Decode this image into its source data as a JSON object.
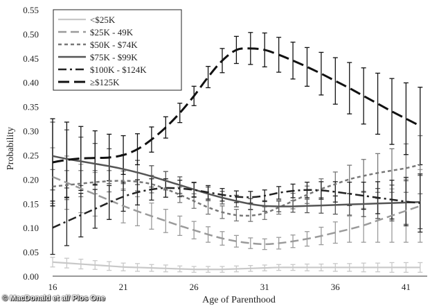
{
  "credit": "© MacDonald et al/ Plos One",
  "chart_data": {
    "type": "line",
    "title": "",
    "xlabel": "Age of Parenthood",
    "ylabel": "Probability",
    "xlim": [
      16,
      42.5
    ],
    "ylim": [
      0,
      0.55
    ],
    "x_ticks": [
      16,
      21,
      26,
      31,
      36,
      41
    ],
    "y_ticks": [
      0.0,
      0.05,
      0.1,
      0.15,
      0.2,
      0.25,
      0.3,
      0.35,
      0.4,
      0.45,
      0.5,
      0.55
    ],
    "legend_position": "top-left",
    "grid": false,
    "x": [
      16,
      17,
      18,
      19,
      20,
      21,
      22,
      23,
      24,
      25,
      26,
      27,
      28,
      29,
      30,
      31,
      32,
      33,
      34,
      35,
      36,
      37,
      38,
      39,
      40,
      41,
      42
    ],
    "series": [
      {
        "name": "<$25K",
        "color": "#c8c8c8",
        "dash": "solid",
        "width": 2.2,
        "values": [
          0.029,
          0.027,
          0.025,
          0.023,
          0.021,
          0.019,
          0.018,
          0.017,
          0.016,
          0.015,
          0.014,
          0.014,
          0.014,
          0.015,
          0.016,
          0.017,
          0.018,
          0.018,
          0.018,
          0.018,
          0.018,
          0.018,
          0.018,
          0.018,
          0.018,
          0.018,
          0.018
        ],
        "error": [
          0.01,
          0.01,
          0.01,
          0.009,
          0.009,
          0.008,
          0.008,
          0.007,
          0.007,
          0.006,
          0.006,
          0.006,
          0.006,
          0.006,
          0.006,
          0.006,
          0.006,
          0.006,
          0.007,
          0.007,
          0.008,
          0.008,
          0.009,
          0.009,
          0.01,
          0.01,
          0.01
        ]
      },
      {
        "name": "$25K - 49K",
        "color": "#9a9a9a",
        "dash": "longdash",
        "width": 2.5,
        "values": [
          0.205,
          0.193,
          0.181,
          0.169,
          0.157,
          0.145,
          0.134,
          0.124,
          0.114,
          0.104,
          0.095,
          0.086,
          0.078,
          0.072,
          0.068,
          0.066,
          0.068,
          0.072,
          0.077,
          0.083,
          0.09,
          0.097,
          0.105,
          0.115,
          0.125,
          0.135,
          0.145
        ],
        "error": [
          0.06,
          0.055,
          0.05,
          0.045,
          0.04,
          0.035,
          0.03,
          0.027,
          0.024,
          0.02,
          0.018,
          0.016,
          0.014,
          0.012,
          0.011,
          0.011,
          0.012,
          0.013,
          0.015,
          0.018,
          0.022,
          0.027,
          0.035,
          0.045,
          0.055,
          0.065,
          0.075
        ]
      },
      {
        "name": "$50K - $74K",
        "color": "#777777",
        "dash": "shortdash",
        "width": 2.5,
        "values": [
          0.185,
          0.188,
          0.191,
          0.194,
          0.196,
          0.197,
          0.195,
          0.19,
          0.18,
          0.168,
          0.155,
          0.142,
          0.132,
          0.126,
          0.125,
          0.13,
          0.142,
          0.155,
          0.168,
          0.18,
          0.19,
          0.2,
          0.207,
          0.213,
          0.218,
          0.223,
          0.23
        ],
        "error": [
          0.035,
          0.03,
          0.027,
          0.024,
          0.022,
          0.02,
          0.019,
          0.018,
          0.017,
          0.016,
          0.015,
          0.014,
          0.013,
          0.012,
          0.012,
          0.013,
          0.014,
          0.016,
          0.018,
          0.021,
          0.025,
          0.029,
          0.034,
          0.04,
          0.045,
          0.05,
          0.06
        ]
      },
      {
        "name": "$75K - $99K",
        "color": "#555555",
        "dash": "solid",
        "width": 2.5,
        "values": [
          0.248,
          0.242,
          0.237,
          0.232,
          0.227,
          0.221,
          0.214,
          0.206,
          0.197,
          0.188,
          0.179,
          0.17,
          0.162,
          0.155,
          0.149,
          0.145,
          0.144,
          0.144,
          0.145,
          0.146,
          0.147,
          0.148,
          0.149,
          0.15,
          0.151,
          0.152,
          0.153
        ],
        "error": [
          0.07,
          0.06,
          0.05,
          0.042,
          0.036,
          0.03,
          0.025,
          0.022,
          0.019,
          0.017,
          0.015,
          0.014,
          0.013,
          0.012,
          0.011,
          0.011,
          0.011,
          0.012,
          0.014,
          0.016,
          0.019,
          0.022,
          0.026,
          0.031,
          0.037,
          0.045,
          0.055
        ]
      },
      {
        "name": "$100K - $124K",
        "color": "#222222",
        "dash": "dashdot",
        "width": 2.5,
        "values": [
          0.1,
          0.113,
          0.126,
          0.139,
          0.152,
          0.164,
          0.173,
          0.179,
          0.182,
          0.181,
          0.178,
          0.173,
          0.168,
          0.164,
          0.163,
          0.166,
          0.172,
          0.176,
          0.178,
          0.177,
          0.174,
          0.17,
          0.166,
          0.162,
          0.158,
          0.154,
          0.151
        ],
        "error": [
          0.055,
          0.05,
          0.045,
          0.04,
          0.035,
          0.03,
          0.026,
          0.022,
          0.019,
          0.017,
          0.015,
          0.014,
          0.013,
          0.012,
          0.012,
          0.012,
          0.013,
          0.014,
          0.016,
          0.018,
          0.021,
          0.024,
          0.028,
          0.033,
          0.04,
          0.05,
          0.06
        ]
      },
      {
        "name": "≥$125K",
        "color": "#111111",
        "dash": "bigdash",
        "width": 3,
        "values": [
          0.235,
          0.24,
          0.243,
          0.244,
          0.245,
          0.25,
          0.262,
          0.282,
          0.307,
          0.337,
          0.372,
          0.411,
          0.445,
          0.467,
          0.47,
          0.467,
          0.457,
          0.445,
          0.432,
          0.418,
          0.403,
          0.388,
          0.372,
          0.356,
          0.34,
          0.325,
          0.31
        ],
        "error": [
          0.09,
          0.078,
          0.066,
          0.056,
          0.048,
          0.04,
          0.032,
          0.026,
          0.022,
          0.02,
          0.02,
          0.022,
          0.025,
          0.028,
          0.033,
          0.035,
          0.036,
          0.038,
          0.04,
          0.044,
          0.048,
          0.053,
          0.058,
          0.063,
          0.068,
          0.074,
          0.08
        ]
      }
    ]
  }
}
